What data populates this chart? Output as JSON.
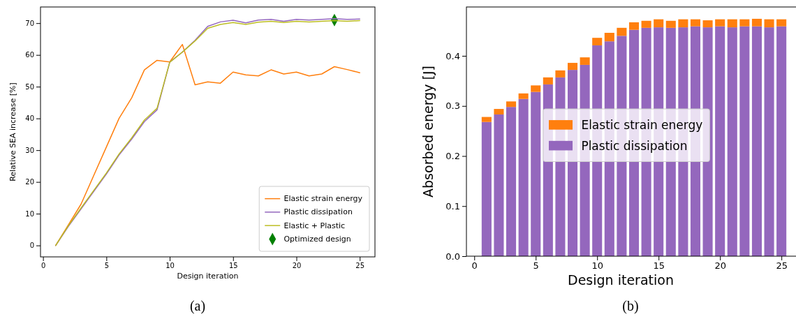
{
  "chart_data": [
    {
      "type": "line",
      "xlabel": "Design iteration",
      "ylabel": "Relative SEA increase [%]",
      "x": [
        1,
        2,
        3,
        4,
        5,
        6,
        7,
        8,
        9,
        10,
        11,
        12,
        13,
        14,
        15,
        16,
        17,
        18,
        19,
        20,
        21,
        22,
        23,
        24,
        25
      ],
      "xlim": [
        -0.2,
        26.2
      ],
      "xticks": [
        0,
        5,
        10,
        15,
        20,
        25
      ],
      "ylim": [
        -3.6,
        75.1
      ],
      "yticks": [
        0,
        10,
        20,
        30,
        40,
        50,
        60,
        70
      ],
      "legend": "bottom right",
      "annotations": [
        "(a)"
      ],
      "series": [
        {
          "name": "Elastic strain energy",
          "color": "#ff7f0e",
          "values": [
            0,
            6.5,
            13,
            22,
            31,
            40,
            46.5,
            55.3,
            58.3,
            57.8,
            63.3,
            50.6,
            51.5,
            51.1,
            54.6,
            53.7,
            53.4,
            55.3,
            54.0,
            54.6,
            53.4,
            54.0,
            56.3,
            55.4,
            54.4
          ]
        },
        {
          "name": "Plastic dissipation",
          "color": "#9467bd",
          "values": [
            0,
            6,
            11.5,
            17,
            22.5,
            28.5,
            33.5,
            39.0,
            42.7,
            57.7,
            60.9,
            64.6,
            69.0,
            70.4,
            70.9,
            70.1,
            71.0,
            71.2,
            70.6,
            71.2,
            71.0,
            71.2,
            71.4,
            71.2,
            71.3
          ]
        },
        {
          "name": "Elastic + Plastic",
          "color": "#bcbd22",
          "values": [
            0,
            6.2,
            11.8,
            17.3,
            22.8,
            28.8,
            33.9,
            39.5,
            43.2,
            57.7,
            60.9,
            64.4,
            68.4,
            69.6,
            70.2,
            69.6,
            70.3,
            70.6,
            70.2,
            70.6,
            70.4,
            70.6,
            70.8,
            70.6,
            70.8
          ]
        },
        {
          "name": "Optimized design",
          "type": "scatter",
          "marker": "diamond",
          "color": "#008000",
          "x": [
            23
          ],
          "values": [
            71
          ]
        }
      ]
    },
    {
      "type": "bar",
      "stacked": true,
      "xlabel": "Design iteration",
      "ylabel": "Absorbed energy [J]",
      "x": [
        1,
        2,
        3,
        4,
        5,
        6,
        7,
        8,
        9,
        10,
        11,
        12,
        13,
        14,
        15,
        16,
        17,
        18,
        19,
        20,
        21,
        22,
        23,
        24,
        25
      ],
      "xlim": [
        -0.64,
        26.64
      ],
      "xticks": [
        0,
        5,
        10,
        15,
        20,
        25
      ],
      "ylim": [
        0,
        0.4976
      ],
      "yticks": [
        {
          "value": 0,
          "label": "0.0"
        },
        {
          "value": 0.1,
          "label": "0.1"
        },
        {
          "value": 0.2,
          "label": "0.2"
        },
        {
          "value": 0.3,
          "label": "0.3"
        },
        {
          "value": 0.4,
          "label": "0.4"
        }
      ],
      "legend": "center",
      "annotations": [
        "(b)"
      ],
      "series": [
        {
          "name": "Plastic dissipation",
          "color": "#9467bd",
          "values": [
            0.268,
            0.283,
            0.298,
            0.314,
            0.328,
            0.343,
            0.357,
            0.372,
            0.382,
            0.421,
            0.429,
            0.44,
            0.452,
            0.456,
            0.457,
            0.456,
            0.457,
            0.459,
            0.457,
            0.459,
            0.457,
            0.459,
            0.459,
            0.457,
            0.459
          ]
        },
        {
          "name": "Elastic strain energy",
          "color": "#ff7f0e",
          "values": [
            0.01,
            0.011,
            0.011,
            0.011,
            0.013,
            0.014,
            0.014,
            0.014,
            0.015,
            0.015,
            0.017,
            0.016,
            0.015,
            0.014,
            0.016,
            0.014,
            0.016,
            0.014,
            0.014,
            0.014,
            0.016,
            0.014,
            0.015,
            0.016,
            0.014
          ]
        }
      ]
    }
  ]
}
